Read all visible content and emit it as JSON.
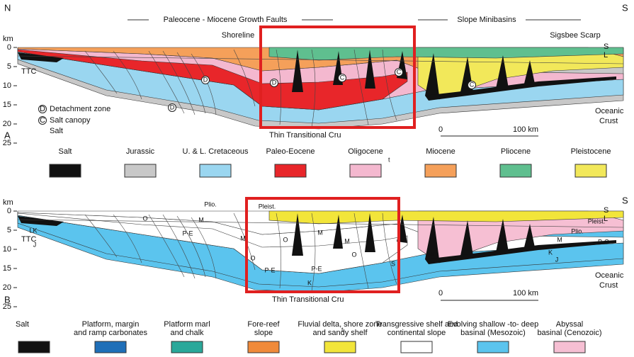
{
  "panel_a": {
    "letter": "A",
    "compass_left": "N",
    "compass_right": "S",
    "header_left": "Paleocene - Miocene Growth Faults",
    "header_right": "Slope Minibasins",
    "shoreline": "Shoreline",
    "scarp": "Sigsbee Scarp",
    "depth_unit": "km",
    "depth_ticks": [
      "0",
      "5",
      "10",
      "15",
      "20",
      "25"
    ],
    "sea_labels": [
      "S",
      "L"
    ],
    "ttc": "TTC",
    "map_symbols": [
      "D",
      "D",
      "D",
      "C",
      "C",
      "C"
    ],
    "key": [
      {
        "symbol": "D",
        "text": "Detachment zone"
      },
      {
        "symbol": "C",
        "text": "Salt canopy"
      },
      {
        "text": "Salt"
      }
    ],
    "crust": [
      "Oceanic",
      "Crust"
    ],
    "scale": [
      "0",
      "100 km"
    ],
    "crust_note": "Thin Transitional Cru",
    "legend": [
      {
        "label": "Salt",
        "color": "#111111"
      },
      {
        "label": "Jurassic",
        "color": "#c8c8c8"
      },
      {
        "label": "U. & L. Cretaceous",
        "color": "#9ad6f0"
      },
      {
        "label": "Paleo-Eocene",
        "color": "#e8262a"
      },
      {
        "label": "Oligocene",
        "color": "#f4b8cf"
      },
      {
        "label": "Miocene",
        "color": "#f5a05a"
      },
      {
        "label": "Pliocene",
        "color": "#5fbf8f"
      },
      {
        "label": "Pleistocene",
        "color": "#f2e85a"
      }
    ],
    "legend_note": "t"
  },
  "panel_b": {
    "letter": "B",
    "compass_right": "S",
    "depth_unit": "km",
    "depth_ticks": [
      "0",
      "5",
      "10",
      "15",
      "20",
      "25"
    ],
    "sea_labels": [
      "S",
      "L"
    ],
    "ttc": "TTC",
    "unit_labels": [
      "Plio.",
      "Pleist.",
      "O",
      "M",
      "LK",
      "J",
      "P-E",
      "M",
      "O",
      "O",
      "M",
      "M",
      "O",
      "P-E",
      "P-E",
      "K",
      "S",
      "M",
      "Pleist.",
      "Plio.",
      "M",
      "P-O",
      "K",
      "J"
    ],
    "crust": [
      "Oceanic",
      "Crust"
    ],
    "scale": [
      "0",
      "100 km"
    ],
    "crust_note": "Thin Transitional Cru",
    "legend": [
      {
        "lines": [
          "Salt"
        ],
        "color": "#111111"
      },
      {
        "lines": [
          "Platform, margin",
          "and ramp carbonates"
        ],
        "color": "#1f6fb8"
      },
      {
        "lines": [
          "Platform marl",
          "and chalk"
        ],
        "color": "#2aa89a"
      },
      {
        "lines": [
          "Fore-reef",
          "slope"
        ],
        "color": "#f08a3a"
      },
      {
        "lines": [
          "Fluvial delta, shore zone",
          "and sandy shelf"
        ],
        "color": "#f2e53a"
      },
      {
        "lines": [
          "Transgressive shelf and",
          "continental slope"
        ],
        "color": "#ffffff"
      },
      {
        "lines": [
          "Evolving shallow -to- deep",
          "basinal (Mesozoic)"
        ],
        "color": "#5bc4ee"
      },
      {
        "lines": [
          "Abyssal",
          "basinal (Cenozoic)"
        ],
        "color": "#f6bfd3"
      }
    ],
    "legend_note": "t"
  }
}
